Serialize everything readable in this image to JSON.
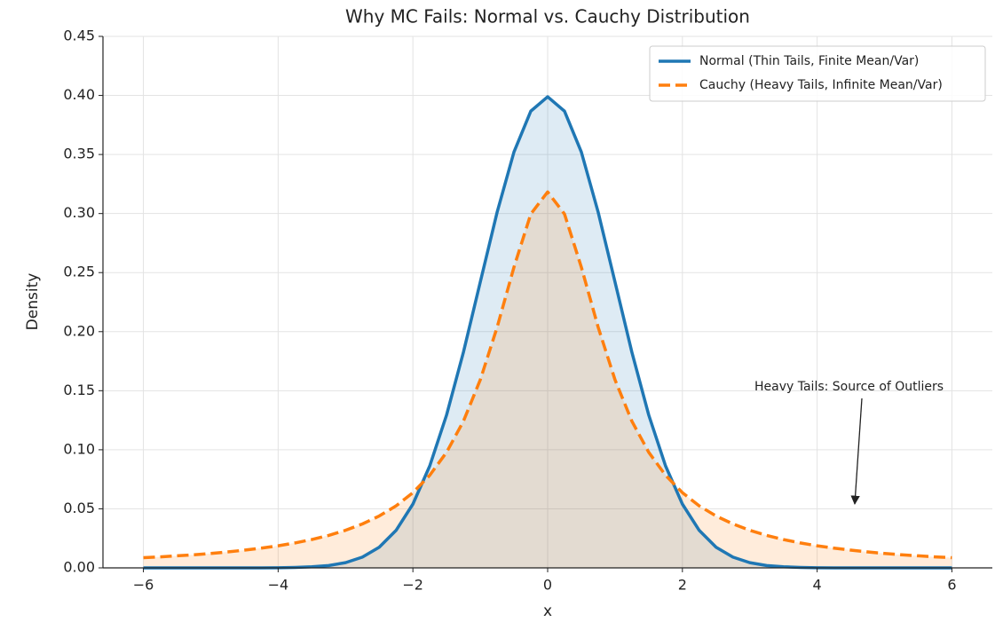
{
  "chart_data": {
    "type": "line",
    "title": "Why MC Fails: Normal vs. Cauchy Distribution",
    "xlabel": "x",
    "ylabel": "Density",
    "x": [
      -6,
      -5.75,
      -5.5,
      -5.25,
      -5,
      -4.75,
      -4.5,
      -4.25,
      -4,
      -3.75,
      -3.5,
      -3.25,
      -3,
      -2.75,
      -2.5,
      -2.25,
      -2,
      -1.75,
      -1.5,
      -1.25,
      -1,
      -0.75,
      -0.5,
      -0.25,
      0,
      0.25,
      0.5,
      0.75,
      1,
      1.25,
      1.5,
      1.75,
      2,
      2.25,
      2.5,
      2.75,
      3,
      3.25,
      3.5,
      3.75,
      4,
      4.25,
      4.5,
      4.75,
      5,
      5.25,
      5.5,
      5.75,
      6
    ],
    "series": [
      {
        "name": "Normal (Thin Tails, Finite Mean/Var)",
        "color": "#1f77b4",
        "dash": false,
        "values": [
          0,
          0,
          0,
          0,
          0,
          0,
          0,
          0,
          0.0001,
          0.0004,
          0.0009,
          0.002,
          0.0044,
          0.0091,
          0.0175,
          0.0317,
          0.054,
          0.0863,
          0.1295,
          0.1826,
          0.242,
          0.3011,
          0.3521,
          0.3867,
          0.3989,
          0.3867,
          0.3521,
          0.3011,
          0.242,
          0.1826,
          0.1295,
          0.0863,
          0.054,
          0.0317,
          0.0175,
          0.0091,
          0.0044,
          0.002,
          0.0009,
          0.0004,
          0.0001,
          0,
          0,
          0,
          0,
          0,
          0,
          0,
          0
        ]
      },
      {
        "name": "Cauchy (Heavy Tails, Infinite Mean/Var)",
        "color": "#ff7f0e",
        "dash": true,
        "values": [
          0.0086,
          0.0093,
          0.0102,
          0.0111,
          0.0122,
          0.0135,
          0.015,
          0.0167,
          0.0187,
          0.0211,
          0.024,
          0.0275,
          0.0318,
          0.0372,
          0.0439,
          0.0525,
          0.0637,
          0.0784,
          0.0979,
          0.1242,
          0.1592,
          0.2037,
          0.2546,
          0.2996,
          0.3183,
          0.2996,
          0.2546,
          0.2037,
          0.1592,
          0.1242,
          0.0979,
          0.0784,
          0.0637,
          0.0525,
          0.0439,
          0.0372,
          0.0318,
          0.0275,
          0.024,
          0.0211,
          0.0187,
          0.0167,
          0.015,
          0.0135,
          0.0122,
          0.0111,
          0.0102,
          0.0093,
          0.0086
        ]
      }
    ],
    "xlim": [
      -6.6,
      6.6
    ],
    "xticks": [
      {
        "value": -6,
        "label": "−6"
      },
      {
        "value": -4,
        "label": "−4"
      },
      {
        "value": -2,
        "label": "−2"
      },
      0,
      2,
      4,
      6
    ],
    "ylim": [
      0,
      0.45
    ],
    "yticks": [
      {
        "value": 0,
        "label": "0.00"
      },
      {
        "value": 0.05,
        "label": "0.05"
      },
      {
        "value": 0.1,
        "label": "0.10"
      },
      {
        "value": 0.15,
        "label": "0.15"
      },
      {
        "value": 0.2,
        "label": "0.20"
      },
      {
        "value": 0.25,
        "label": "0.25"
      },
      {
        "value": 0.3,
        "label": "0.30"
      },
      {
        "value": 0.35,
        "label": "0.35"
      },
      {
        "value": 0.4,
        "label": "0.40"
      },
      {
        "value": 0.45,
        "label": "0.45"
      }
    ],
    "grid": true,
    "fill_under": true,
    "legend": "upper right",
    "annotation": "Heavy Tails: Source of Outliers"
  }
}
